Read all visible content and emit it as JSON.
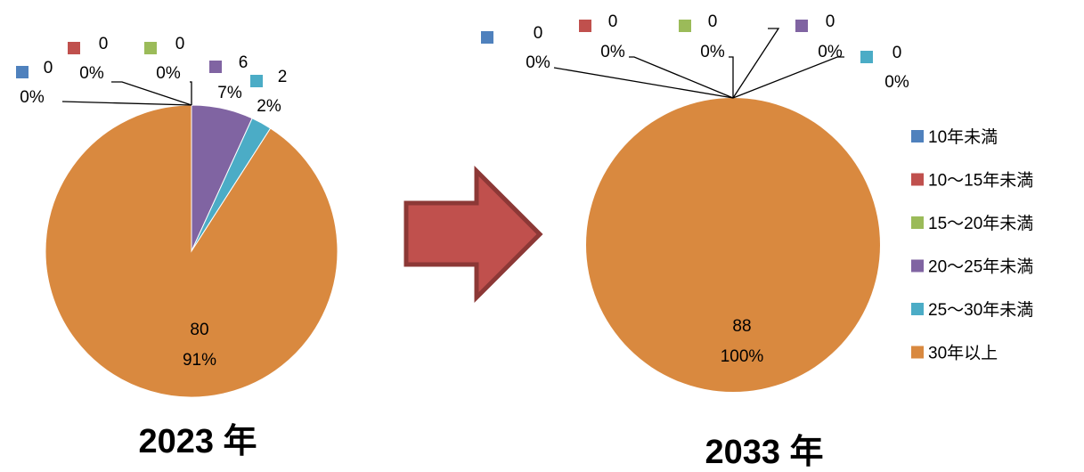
{
  "chart_data": [
    {
      "type": "pie",
      "caption": "2023 年",
      "categories": [
        "10年未満",
        "10～15年未満",
        "15～20年未満",
        "20～25年未満",
        "25～30年未満",
        "30年以上"
      ],
      "values": [
        0,
        0,
        0,
        6,
        2,
        80
      ],
      "percent_labels": [
        "0%",
        "0%",
        "0%",
        "7%",
        "2%",
        "91%"
      ],
      "colors": [
        "#4F81BD",
        "#C0504D",
        "#9BBB59",
        "#8064A2",
        "#4BACC6",
        "#D9893F"
      ]
    },
    {
      "type": "pie",
      "caption": "2033 年",
      "categories": [
        "10年未満",
        "10～15年未満",
        "15～20年未満",
        "20～25年未満",
        "25～30年未満",
        "30年以上"
      ],
      "values": [
        0,
        0,
        0,
        0,
        0,
        88
      ],
      "percent_labels": [
        "0%",
        "0%",
        "0%",
        "0%",
        "0%",
        "100%"
      ],
      "colors": [
        "#4F81BD",
        "#C0504D",
        "#9BBB59",
        "#8064A2",
        "#4BACC6",
        "#D9893F"
      ]
    }
  ],
  "legend": {
    "position": "right",
    "items": [
      "10年未満",
      "10～15年未満",
      "15～20年未満",
      "20～25年未満",
      "25～30年未満",
      "30年以上"
    ]
  },
  "arrow": {
    "color": "#C0504D",
    "border_color": "#8C3836",
    "icon": "right-arrow-icon"
  }
}
